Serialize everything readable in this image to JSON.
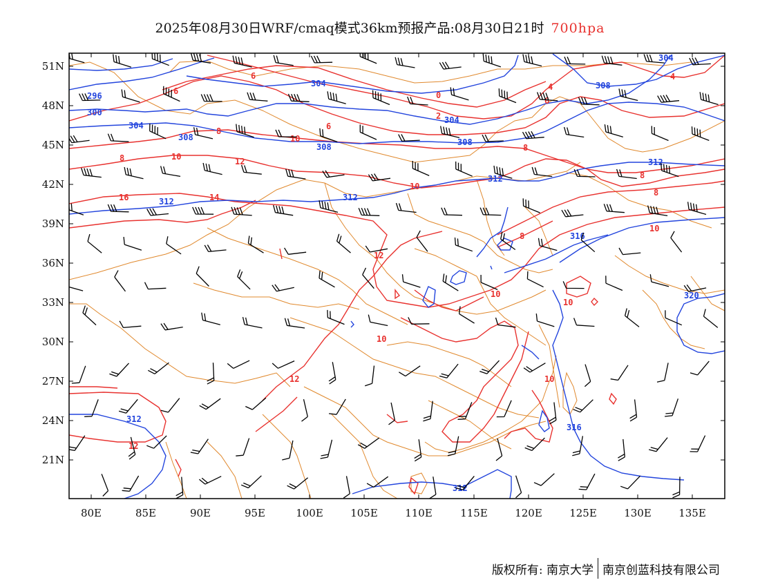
{
  "title": {
    "text": "2025年08月30日WRF/cmaq模式36km预报产品:08月30日21时",
    "level": "700hpa"
  },
  "colors": {
    "temperature": "#e8312e",
    "geopotential": "#2244dd",
    "boundary": "#e0882c",
    "wind": "#000000"
  },
  "map": {
    "lon_range": [
      78,
      138
    ],
    "lat_range": [
      18,
      52
    ],
    "lon_ticks": [
      "80E",
      "85E",
      "90E",
      "95E",
      "100E",
      "105E",
      "110E",
      "115E",
      "120E",
      "125E",
      "130E",
      "135E"
    ],
    "lat_ticks": [
      "51N",
      "48N",
      "45N",
      "42N",
      "39N",
      "36N",
      "33N",
      "30N",
      "27N",
      "24N",
      "21N"
    ],
    "geopotential_labels": [
      "296",
      "300",
      "304",
      "304",
      "304",
      "304",
      "308",
      "308",
      "308",
      "308",
      "312",
      "312",
      "312",
      "312",
      "312",
      "312",
      "316",
      "316",
      "320"
    ],
    "temperature_labels": [
      "0",
      "2",
      "4",
      "4",
      "6",
      "6",
      "6",
      "6",
      "8",
      "8",
      "8",
      "8",
      "8",
      "8",
      "10",
      "10",
      "10",
      "10",
      "10",
      "10",
      "10",
      "10",
      "12",
      "12",
      "12",
      "12",
      "14",
      "16"
    ]
  },
  "footer": {
    "copyright": "版权所有: 南京大学",
    "company": "南京创蓝科技有限公司"
  }
}
